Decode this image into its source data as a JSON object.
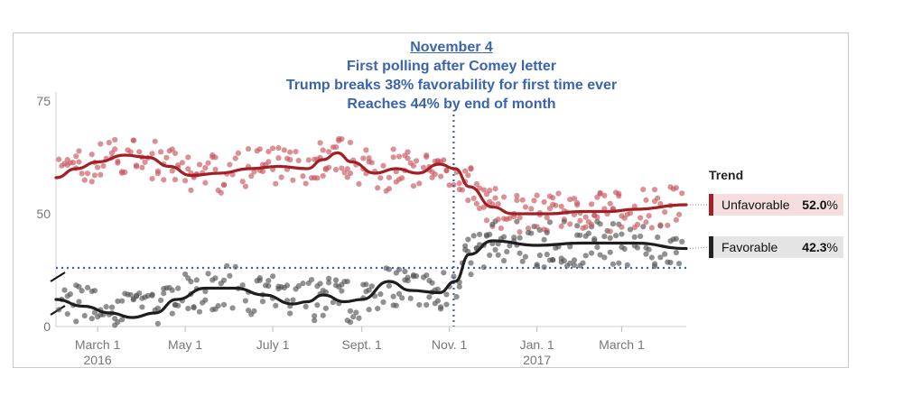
{
  "annotation": {
    "title": "November 4",
    "lines": [
      "First polling after Comey letter",
      "Trump breaks 38% favorability for first time ever",
      "Reaches 44% by end of month"
    ]
  },
  "legend": {
    "title": "Trend",
    "unfavorable": {
      "label": "Unfavorable",
      "value": "52.0",
      "unit": "%"
    },
    "favorable": {
      "label": "Favorable",
      "value": "42.3",
      "unit": "%"
    }
  },
  "colors": {
    "unfavorable": "#a31f24",
    "unfavorable_points": "#c8555d",
    "favorable": "#1e1e1e",
    "favorable_points": "#555555",
    "reference": "#3a64b0",
    "axis_text": "#777777"
  },
  "chart_data": {
    "type": "scatter",
    "x_axis": {
      "ticks": [
        {
          "date": "2016-03-01",
          "label": "March 1",
          "sub": "2016"
        },
        {
          "date": "2016-05-01",
          "label": "May 1",
          "sub": ""
        },
        {
          "date": "2016-07-01",
          "label": "July 1",
          "sub": ""
        },
        {
          "date": "2016-09-01",
          "label": "Sept. 1",
          "sub": ""
        },
        {
          "date": "2016-11-01",
          "label": "Nov. 1",
          "sub": ""
        },
        {
          "date": "2017-01-01",
          "label": "Jan. 1",
          "sub": "2017"
        },
        {
          "date": "2017-03-01",
          "label": "March 1",
          "sub": ""
        }
      ],
      "range": [
        "2016-02-01",
        "2017-04-15"
      ]
    },
    "y_axis": {
      "ticks": [
        0,
        50,
        75
      ],
      "range": [
        0,
        75
      ],
      "axis_break": true
    },
    "reference_lines": {
      "x": "2016-11-04",
      "y": 38
    },
    "series": [
      {
        "name": "Unfavorable",
        "trend": [
          [
            "2016-02-01",
            58
          ],
          [
            "2016-02-15",
            60
          ],
          [
            "2016-03-01",
            61.5
          ],
          [
            "2016-03-20",
            63
          ],
          [
            "2016-04-05",
            62.5
          ],
          [
            "2016-04-20",
            60.5
          ],
          [
            "2016-05-05",
            58.5
          ],
          [
            "2016-05-25",
            59
          ],
          [
            "2016-06-15",
            60
          ],
          [
            "2016-07-05",
            60.5
          ],
          [
            "2016-07-25",
            60
          ],
          [
            "2016-08-05",
            62
          ],
          [
            "2016-08-15",
            63.5
          ],
          [
            "2016-08-25",
            61.5
          ],
          [
            "2016-09-10",
            59
          ],
          [
            "2016-09-25",
            60
          ],
          [
            "2016-10-10",
            59
          ],
          [
            "2016-10-25",
            61
          ],
          [
            "2016-11-05",
            60
          ],
          [
            "2016-11-15",
            56
          ],
          [
            "2016-12-01",
            51.5
          ],
          [
            "2016-12-15",
            50
          ],
          [
            "2017-01-10",
            50
          ],
          [
            "2017-02-01",
            50.5
          ],
          [
            "2017-02-20",
            50.5
          ],
          [
            "2017-03-10",
            51
          ],
          [
            "2017-04-15",
            52
          ]
        ]
      },
      {
        "name": "Favorable",
        "trend": [
          [
            "2016-02-01",
            31
          ],
          [
            "2016-02-20",
            29.5
          ],
          [
            "2016-03-10",
            28
          ],
          [
            "2016-03-25",
            27
          ],
          [
            "2016-04-10",
            28
          ],
          [
            "2016-04-25",
            31
          ],
          [
            "2016-05-15",
            33.5
          ],
          [
            "2016-06-05",
            33.5
          ],
          [
            "2016-06-25",
            32
          ],
          [
            "2016-07-15",
            30
          ],
          [
            "2016-07-25",
            30.5
          ],
          [
            "2016-08-05",
            32
          ],
          [
            "2016-08-20",
            30.5
          ],
          [
            "2016-09-01",
            31
          ],
          [
            "2016-09-20",
            35
          ],
          [
            "2016-10-05",
            33
          ],
          [
            "2016-10-25",
            32.5
          ],
          [
            "2016-11-05",
            35
          ],
          [
            "2016-11-15",
            41
          ],
          [
            "2016-12-01",
            44
          ],
          [
            "2017-01-01",
            43
          ],
          [
            "2017-02-01",
            43.5
          ],
          [
            "2017-03-10",
            43.5
          ],
          [
            "2017-04-15",
            42.3
          ]
        ]
      }
    ]
  }
}
